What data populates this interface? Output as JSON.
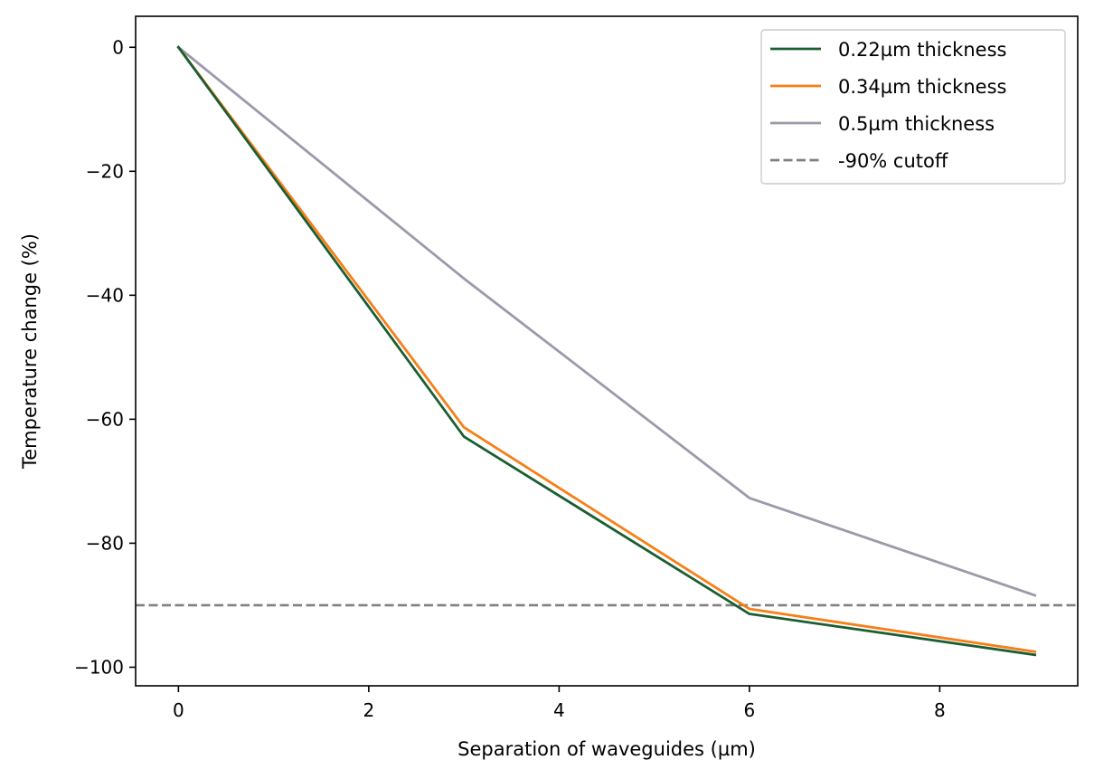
{
  "chart_data": {
    "type": "line",
    "title": "",
    "xlabel": "Separation of waveguides (µm)",
    "ylabel": "Temperature change (%)",
    "xlim": [
      -0.45,
      9.45
    ],
    "ylim": [
      -103,
      5
    ],
    "xticks": [
      0,
      2,
      4,
      6,
      8
    ],
    "yticks": [
      0,
      -20,
      -40,
      -60,
      -80,
      -100
    ],
    "xtick_labels": [
      "0",
      "2",
      "4",
      "6",
      "8"
    ],
    "ytick_labels": [
      "0",
      "−20",
      "−40",
      "−60",
      "−80",
      "−100"
    ],
    "grid": false,
    "legend_position": "top-right",
    "series": [
      {
        "name": "0.22µm thickness",
        "color": "#1a5e32",
        "style": "solid",
        "x": [
          0,
          3,
          6,
          9
        ],
        "y": [
          0,
          -62.8,
          -91.4,
          -98.0
        ]
      },
      {
        "name": "0.34µm thickness",
        "color": "#f77f17",
        "style": "solid",
        "x": [
          0,
          3,
          6,
          9
        ],
        "y": [
          0,
          -61.3,
          -90.6,
          -97.5
        ]
      },
      {
        "name": "0.5µm thickness",
        "color": "#9a9aaa",
        "style": "solid",
        "x": [
          0,
          3,
          6,
          9
        ],
        "y": [
          0,
          -37.3,
          -72.7,
          -88.4
        ]
      }
    ],
    "reference_lines": [
      {
        "name": "-90% cutoff",
        "orientation": "horizontal",
        "y": -90,
        "color": "#808080",
        "style": "dashed"
      }
    ]
  }
}
